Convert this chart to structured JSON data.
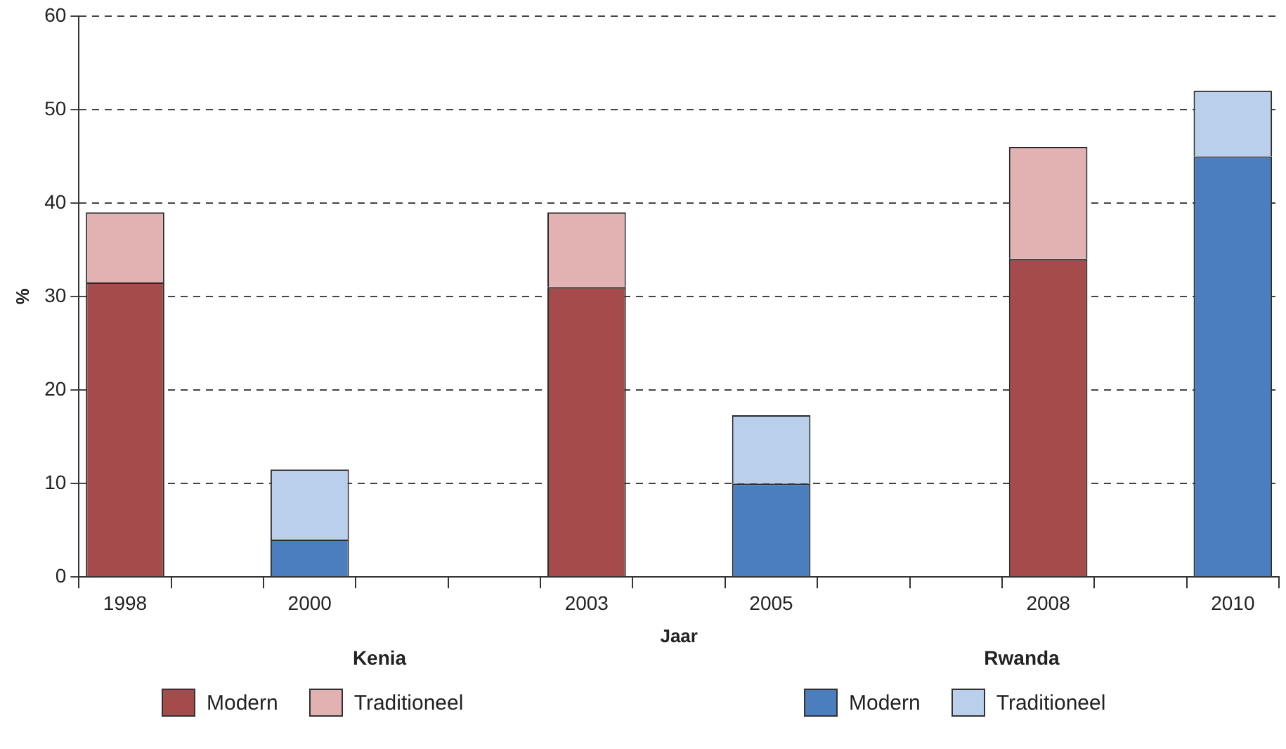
{
  "chart_data": {
    "type": "bar",
    "stacked": true,
    "xlabel": "Jaar",
    "ylabel": "%",
    "categories": [
      "1998",
      null,
      "2000",
      null,
      null,
      "2003",
      null,
      "2005",
      null,
      null,
      "2008",
      null,
      "2010"
    ],
    "series": [
      {
        "name": "Modern",
        "color": "#a64b4b",
        "values": [
          31.5,
          null,
          null,
          null,
          null,
          31,
          null,
          null,
          null,
          null,
          34,
          null,
          null
        ]
      },
      {
        "name": "Traditioneel",
        "color": "#e2b1b1",
        "values": [
          7.5,
          null,
          null,
          null,
          null,
          8,
          null,
          null,
          null,
          null,
          12,
          null,
          null
        ]
      },
      {
        "name": "Modern",
        "color": "#4a7ebf",
        "values": [
          null,
          null,
          4,
          null,
          null,
          null,
          null,
          10,
          null,
          null,
          null,
          null,
          45
        ]
      },
      {
        "name": "Traditioneel",
        "color": "#b9cfeb",
        "values": [
          null,
          null,
          7.5,
          null,
          null,
          null,
          null,
          7.3,
          null,
          null,
          null,
          null,
          7
        ]
      }
    ],
    "ylim": [
      0,
      60
    ],
    "yticks": [
      0,
      10,
      20,
      30,
      40,
      50,
      60
    ],
    "grid": "y",
    "legend": "bottom",
    "annotations": [
      "Kenia",
      "Rwanda"
    ]
  }
}
